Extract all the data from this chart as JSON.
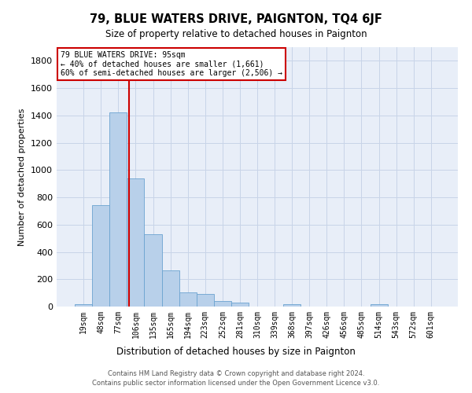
{
  "title": "79, BLUE WATERS DRIVE, PAIGNTON, TQ4 6JF",
  "subtitle": "Size of property relative to detached houses in Paignton",
  "xlabel": "Distribution of detached houses by size in Paignton",
  "ylabel": "Number of detached properties",
  "footer_line1": "Contains HM Land Registry data © Crown copyright and database right 2024.",
  "footer_line2": "Contains public sector information licensed under the Open Government Licence v3.0.",
  "categories": [
    "19sqm",
    "48sqm",
    "77sqm",
    "106sqm",
    "135sqm",
    "165sqm",
    "194sqm",
    "223sqm",
    "252sqm",
    "281sqm",
    "310sqm",
    "339sqm",
    "368sqm",
    "397sqm",
    "426sqm",
    "456sqm",
    "485sqm",
    "514sqm",
    "543sqm",
    "572sqm",
    "601sqm"
  ],
  "values": [
    20,
    745,
    1425,
    940,
    530,
    265,
    105,
    90,
    38,
    28,
    0,
    0,
    15,
    0,
    0,
    0,
    0,
    15,
    0,
    0,
    0
  ],
  "bar_color": "#b8d0ea",
  "bar_edge_color": "#6ba3d0",
  "grid_color": "#c8d4e8",
  "background_color": "#e8eef8",
  "property_label": "79 BLUE WATERS DRIVE: 95sqm",
  "annotation_line1": "← 40% of detached houses are smaller (1,661)",
  "annotation_line2": "60% of semi-detached houses are larger (2,506) →",
  "vline_color": "#cc0000",
  "annotation_box_color": "#cc0000",
  "ylim": [
    0,
    1900
  ],
  "yticks": [
    0,
    200,
    400,
    600,
    800,
    1000,
    1200,
    1400,
    1600,
    1800
  ]
}
